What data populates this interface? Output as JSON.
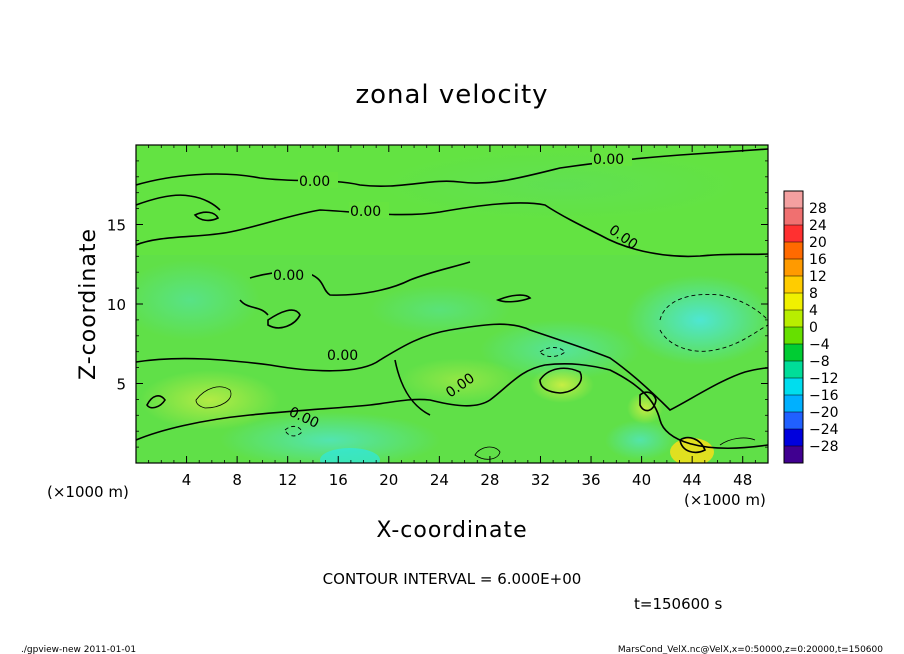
{
  "chart_data": {
    "type": "heatmap",
    "title": "zonal velocity",
    "xlabel": "X-coordinate",
    "ylabel": "Z-coordinate",
    "x_unit": "(×1000 m)",
    "y_unit": "(×1000 m)",
    "x_ticks": [
      4,
      8,
      12,
      16,
      20,
      24,
      28,
      32,
      36,
      40,
      44,
      48
    ],
    "y_ticks": [
      5,
      10,
      15
    ],
    "xlim": [
      0,
      50
    ],
    "ylim": [
      0,
      20
    ],
    "colorbar_levels": [
      28,
      24,
      20,
      16,
      12,
      8,
      4,
      0,
      -4,
      -8,
      -12,
      -16,
      -20,
      -24,
      -28
    ],
    "colorbar_colors": [
      "#f4a0a0",
      "#f07070",
      "#ff3030",
      "#ff6a00",
      "#ff9a00",
      "#ffcc00",
      "#f0f000",
      "#b8ee00",
      "#66e000",
      "#00cc33",
      "#00dd99",
      "#00ddee",
      "#00b0ff",
      "#2060ff",
      "#0000dd",
      "#400090"
    ],
    "contour_interval_text": "CONTOUR INTERVAL = 6.000E+00",
    "contour_labels": [
      "0.00",
      "0.00",
      "0.00",
      "0.00",
      "0.00",
      "0.00",
      "0.00",
      "0.00"
    ],
    "time_label": "t=150600 s",
    "footer_left": "./gpview-new   2011-01-01",
    "footer_right": "MarsCond_VelX.nc@VelX,x=0:50000,z=0:20000,t=150600"
  }
}
